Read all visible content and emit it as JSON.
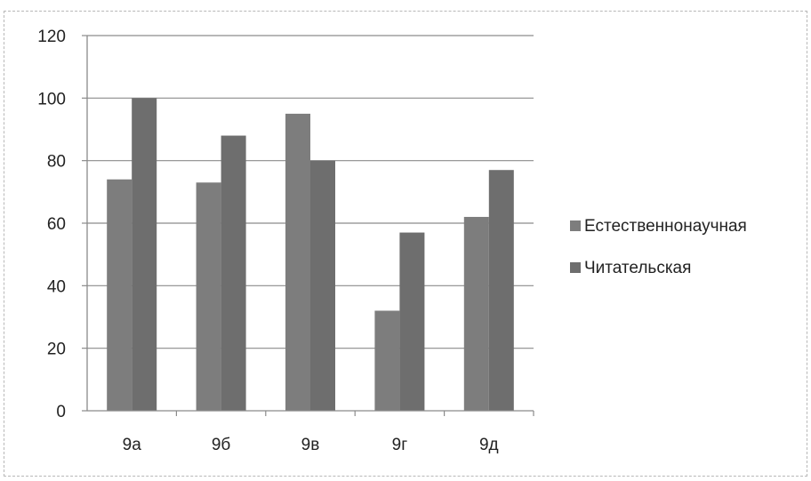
{
  "chart_data": {
    "type": "bar",
    "categories": [
      "9а",
      "9б",
      "9в",
      "9г",
      "9д"
    ],
    "series": [
      {
        "name": "Естественнонаучная",
        "values": [
          74,
          73,
          95,
          32,
          62
        ],
        "color": "#7d7d7d"
      },
      {
        "name": "Читательская",
        "values": [
          100,
          88,
          80,
          57,
          77
        ],
        "color": "#6e6e6e"
      }
    ],
    "yticks": [
      "0",
      "20",
      "40",
      "60",
      "80",
      "100",
      "120"
    ],
    "ylim": [
      0,
      120
    ],
    "grid": true,
    "legend_position": "right",
    "title": "",
    "xlabel": "",
    "ylabel": ""
  }
}
